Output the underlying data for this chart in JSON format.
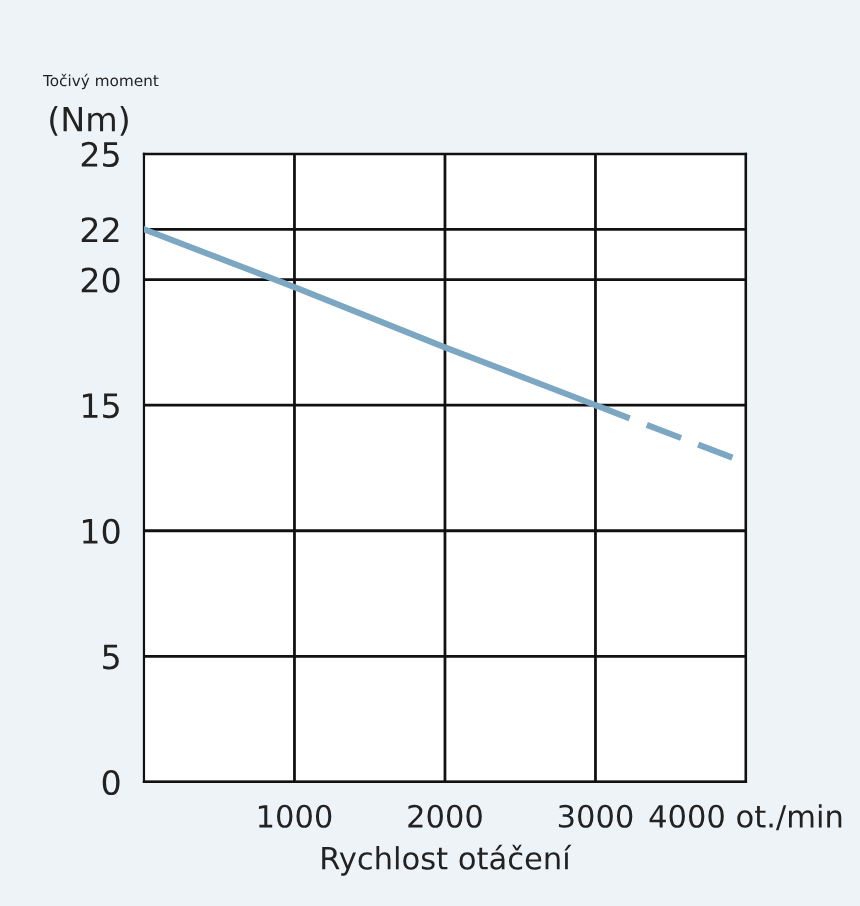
{
  "chart_data": {
    "type": "line",
    "xlabel": "Rychlost otáčení",
    "ylabel": "Točivý moment\n(Nm)",
    "series": [
      {
        "color": "#7ba7c2",
        "line_style": "solid",
        "x": [
          0,
          1000,
          2000,
          3000
        ],
        "values": [
          22,
          19.7,
          17.3,
          15
        ]
      },
      {
        "color": "#7ba7c2",
        "line_style": "dashed",
        "x": [
          3000,
          4000
        ],
        "values": [
          15,
          12.7
        ]
      }
    ],
    "xlim": [
      0,
      4000
    ],
    "xticks": [
      1000,
      2000,
      3000,
      {
        "value": 4000,
        "label": "4000 ot./min"
      }
    ],
    "ylim": [
      0,
      25
    ],
    "yticks": [
      0,
      5,
      10,
      15,
      20,
      22,
      25
    ],
    "grid": true,
    "marker": "none"
  }
}
